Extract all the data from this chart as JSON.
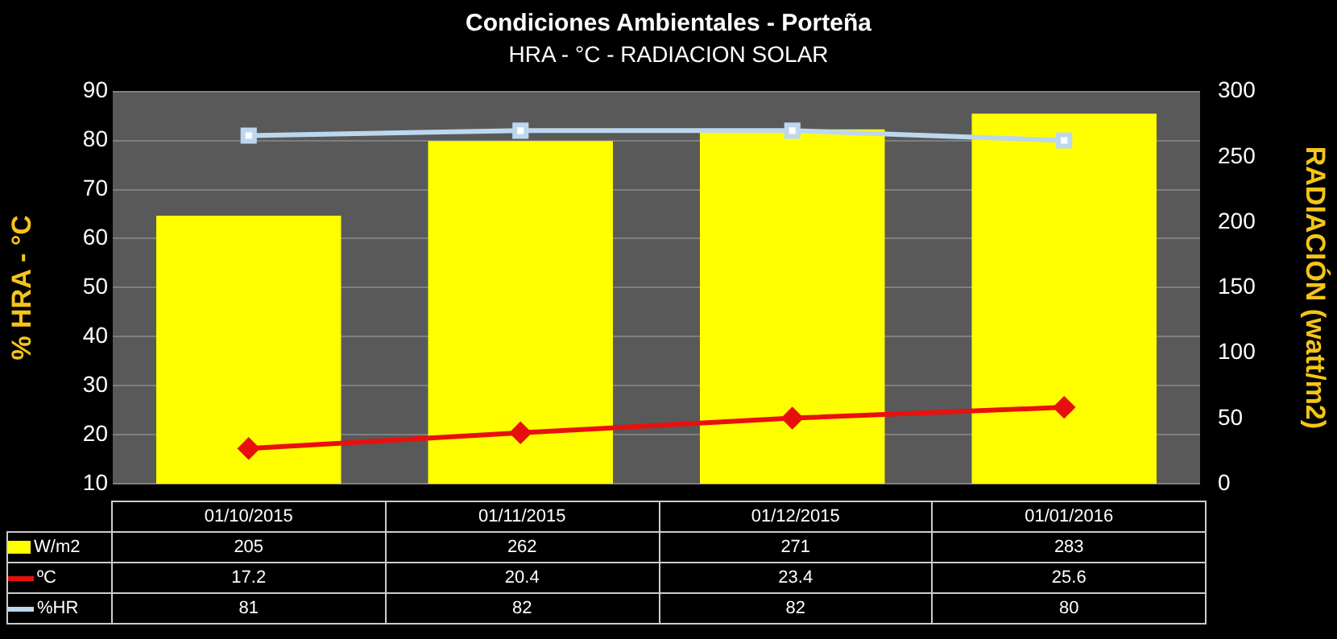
{
  "chart_data": {
    "type": "bar",
    "title": "Condiciones Ambientales - Porteña",
    "subtitle": "HRA - °C - RADIACION SOLAR",
    "ylabel": "% HRA - °C",
    "y2label": "RADIACIÓN (watt/m2)",
    "categories": [
      "01/10/2015",
      "01/11/2015",
      "01/12/2015",
      "01/01/2016"
    ],
    "series": [
      {
        "name": "W/m2",
        "axis": "y2",
        "color": "#ffff00",
        "values": [
          205,
          262,
          271,
          283
        ]
      },
      {
        "name": "ºC",
        "type": "line",
        "color": "#e8100c",
        "marker": "diamond",
        "values": [
          17.2,
          20.4,
          23.4,
          25.6
        ]
      },
      {
        "name": "%HR",
        "type": "line",
        "color": "#bdd7ee",
        "marker": "square",
        "values": [
          81,
          82,
          82,
          80
        ]
      }
    ],
    "ylim": [
      10,
      90
    ],
    "yticks": [
      10,
      20,
      30,
      40,
      50,
      60,
      70,
      80,
      90
    ],
    "y2lim": [
      0,
      300
    ],
    "y2ticks": [
      0,
      50,
      100,
      150,
      200,
      250,
      300
    ],
    "grid": "y",
    "legend": "bottom",
    "data_labels": true
  }
}
